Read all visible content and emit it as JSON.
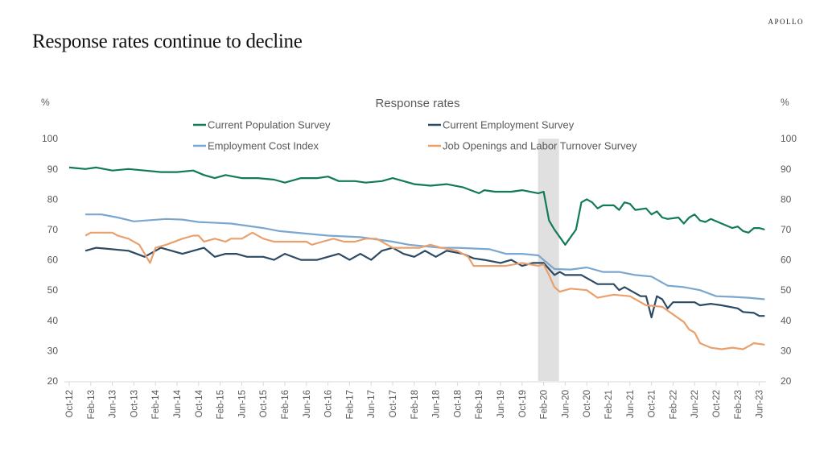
{
  "logo": "APOLLO",
  "slide_title": "Response rates continue to decline",
  "chart_data": {
    "type": "line",
    "title": "Response rates",
    "ylabel_left": "%",
    "ylabel_right": "%",
    "ylim": [
      20,
      100
    ],
    "y_ticks": [
      20,
      30,
      40,
      50,
      60,
      70,
      80,
      90,
      100
    ],
    "x_range": [
      "2012-10",
      "2023-07"
    ],
    "x_tick_labels": [
      "Oct-12",
      "Feb-13",
      "Jun-13",
      "Oct-13",
      "Feb-14",
      "Jun-14",
      "Oct-14",
      "Feb-15",
      "Jun-15",
      "Oct-15",
      "Feb-16",
      "Jun-16",
      "Oct-16",
      "Feb-17",
      "Jun-17",
      "Oct-17",
      "Feb-18",
      "Jun-18",
      "Oct-18",
      "Feb-19",
      "Jun-19",
      "Oct-19",
      "Feb-20",
      "Jun-20",
      "Oct-20",
      "Feb-21",
      "Jun-21",
      "Oct-21",
      "Feb-22",
      "Jun-22",
      "Oct-22",
      "Feb-23",
      "Jun-23"
    ],
    "shaded_period": [
      "2020-02",
      "2020-05"
    ],
    "shade_color": "#e0e0e0",
    "grid": false,
    "legend_placement": "top",
    "series": [
      {
        "name": "Current Population Survey",
        "color": "#13795b",
        "points": [
          [
            "2012-10",
            90.5
          ],
          [
            "2013-01",
            90
          ],
          [
            "2013-03",
            90.5
          ],
          [
            "2013-06",
            89.5
          ],
          [
            "2013-09",
            90
          ],
          [
            "2013-12",
            89.5
          ],
          [
            "2014-03",
            89
          ],
          [
            "2014-06",
            89
          ],
          [
            "2014-09",
            89.5
          ],
          [
            "2014-11",
            88
          ],
          [
            "2015-01",
            87
          ],
          [
            "2015-03",
            88
          ],
          [
            "2015-06",
            87
          ],
          [
            "2015-09",
            87
          ],
          [
            "2015-12",
            86.5
          ],
          [
            "2016-02",
            85.5
          ],
          [
            "2016-05",
            87
          ],
          [
            "2016-08",
            87
          ],
          [
            "2016-10",
            87.5
          ],
          [
            "2016-12",
            86
          ],
          [
            "2017-03",
            86
          ],
          [
            "2017-05",
            85.5
          ],
          [
            "2017-08",
            86
          ],
          [
            "2017-10",
            87
          ],
          [
            "2017-12",
            86
          ],
          [
            "2018-02",
            85
          ],
          [
            "2018-05",
            84.5
          ],
          [
            "2018-08",
            85
          ],
          [
            "2018-11",
            84
          ],
          [
            "2019-02",
            82
          ],
          [
            "2019-03",
            83
          ],
          [
            "2019-05",
            82.5
          ],
          [
            "2019-08",
            82.5
          ],
          [
            "2019-10",
            83
          ],
          [
            "2020-01",
            82
          ],
          [
            "2020-02",
            82.5
          ],
          [
            "2020-03",
            73
          ],
          [
            "2020-04",
            70
          ],
          [
            "2020-06",
            65
          ],
          [
            "2020-08",
            70
          ],
          [
            "2020-09",
            79
          ],
          [
            "2020-10",
            80
          ],
          [
            "2020-11",
            79
          ],
          [
            "2020-12",
            77
          ],
          [
            "2021-01",
            78
          ],
          [
            "2021-03",
            78
          ],
          [
            "2021-04",
            76.5
          ],
          [
            "2021-05",
            79
          ],
          [
            "2021-06",
            78.5
          ],
          [
            "2021-07",
            76.5
          ],
          [
            "2021-09",
            77
          ],
          [
            "2021-10",
            75
          ],
          [
            "2021-11",
            76
          ],
          [
            "2021-12",
            74
          ],
          [
            "2022-01",
            73.5
          ],
          [
            "2022-03",
            74
          ],
          [
            "2022-04",
            72
          ],
          [
            "2022-05",
            74
          ],
          [
            "2022-06",
            75
          ],
          [
            "2022-07",
            73
          ],
          [
            "2022-08",
            72.5
          ],
          [
            "2022-09",
            73.5
          ],
          [
            "2022-11",
            72
          ],
          [
            "2023-01",
            70.5
          ],
          [
            "2023-02",
            71
          ],
          [
            "2023-03",
            69.5
          ],
          [
            "2023-04",
            69
          ],
          [
            "2023-05",
            70.5
          ],
          [
            "2023-06",
            70.5
          ],
          [
            "2023-07",
            70
          ]
        ]
      },
      {
        "name": "Current Employment Survey",
        "color": "#2c4a63",
        "points": [
          [
            "2013-01",
            63
          ],
          [
            "2013-03",
            64
          ],
          [
            "2013-09",
            63
          ],
          [
            "2013-12",
            61
          ],
          [
            "2014-03",
            64
          ],
          [
            "2014-05",
            63
          ],
          [
            "2014-07",
            62
          ],
          [
            "2014-09",
            63
          ],
          [
            "2014-11",
            64
          ],
          [
            "2015-01",
            61
          ],
          [
            "2015-03",
            62
          ],
          [
            "2015-05",
            62
          ],
          [
            "2015-07",
            61
          ],
          [
            "2015-10",
            61
          ],
          [
            "2015-12",
            60
          ],
          [
            "2016-02",
            62
          ],
          [
            "2016-05",
            60
          ],
          [
            "2016-08",
            60
          ],
          [
            "2016-10",
            61
          ],
          [
            "2016-12",
            62
          ],
          [
            "2017-02",
            60
          ],
          [
            "2017-04",
            62
          ],
          [
            "2017-06",
            60
          ],
          [
            "2017-08",
            63
          ],
          [
            "2017-10",
            64
          ],
          [
            "2017-12",
            62
          ],
          [
            "2018-02",
            61
          ],
          [
            "2018-04",
            63
          ],
          [
            "2018-06",
            61
          ],
          [
            "2018-08",
            63
          ],
          [
            "2018-11",
            62
          ],
          [
            "2019-01",
            60.5
          ],
          [
            "2019-03",
            60
          ],
          [
            "2019-06",
            59
          ],
          [
            "2019-08",
            60
          ],
          [
            "2019-10",
            58
          ],
          [
            "2019-12",
            59
          ],
          [
            "2020-02",
            59
          ],
          [
            "2020-04",
            55
          ],
          [
            "2020-05",
            56
          ],
          [
            "2020-06",
            55
          ],
          [
            "2020-09",
            55
          ],
          [
            "2020-12",
            52
          ],
          [
            "2021-03",
            52
          ],
          [
            "2021-04",
            50
          ],
          [
            "2021-05",
            51
          ],
          [
            "2021-08",
            48
          ],
          [
            "2021-09",
            48
          ],
          [
            "2021-10",
            41
          ],
          [
            "2021-11",
            48
          ],
          [
            "2021-12",
            47
          ],
          [
            "2022-01",
            44
          ],
          [
            "2022-02",
            46
          ],
          [
            "2022-06",
            46
          ],
          [
            "2022-07",
            45
          ],
          [
            "2022-09",
            45.5
          ],
          [
            "2022-11",
            45
          ],
          [
            "2023-02",
            44
          ],
          [
            "2023-03",
            42.8
          ],
          [
            "2023-05",
            42.5
          ],
          [
            "2023-06",
            41.5
          ],
          [
            "2023-07",
            41.5
          ]
        ]
      },
      {
        "name": "Employment Cost Index",
        "color": "#7ba7cf",
        "points": [
          [
            "2013-01",
            75
          ],
          [
            "2013-04",
            75
          ],
          [
            "2013-07",
            74
          ],
          [
            "2013-10",
            72.7
          ],
          [
            "2014-04",
            73.5
          ],
          [
            "2014-07",
            73.3
          ],
          [
            "2014-10",
            72.5
          ],
          [
            "2015-04",
            72
          ],
          [
            "2015-10",
            70.5
          ],
          [
            "2016-01",
            69.5
          ],
          [
            "2016-07",
            68.5
          ],
          [
            "2016-10",
            68
          ],
          [
            "2017-04",
            67.5
          ],
          [
            "2017-10",
            66
          ],
          [
            "2018-01",
            65
          ],
          [
            "2018-07",
            64
          ],
          [
            "2018-10",
            64
          ],
          [
            "2019-04",
            63.5
          ],
          [
            "2019-07",
            62
          ],
          [
            "2019-10",
            62
          ],
          [
            "2020-01",
            61.5
          ],
          [
            "2020-04",
            57
          ],
          [
            "2020-07",
            56.8
          ],
          [
            "2020-10",
            57.5
          ],
          [
            "2021-01",
            56
          ],
          [
            "2021-04",
            56
          ],
          [
            "2021-07",
            55
          ],
          [
            "2021-10",
            54.5
          ],
          [
            "2022-01",
            51.5
          ],
          [
            "2022-04",
            51
          ],
          [
            "2022-07",
            50
          ],
          [
            "2022-10",
            48
          ],
          [
            "2023-01",
            47.8
          ],
          [
            "2023-04",
            47.5
          ],
          [
            "2023-07",
            47
          ]
        ]
      },
      {
        "name": "Job Openings and Labor Turnover Survey",
        "color": "#e9a06c",
        "points": [
          [
            "2013-01",
            68
          ],
          [
            "2013-02",
            69
          ],
          [
            "2013-06",
            69
          ],
          [
            "2013-07",
            68
          ],
          [
            "2013-09",
            67
          ],
          [
            "2013-11",
            65
          ],
          [
            "2013-12",
            62
          ],
          [
            "2014-01",
            59
          ],
          [
            "2014-02",
            64
          ],
          [
            "2014-04",
            65
          ],
          [
            "2014-07",
            67
          ],
          [
            "2014-09",
            68
          ],
          [
            "2014-10",
            68
          ],
          [
            "2014-11",
            66
          ],
          [
            "2015-01",
            67
          ],
          [
            "2015-03",
            66
          ],
          [
            "2015-04",
            67
          ],
          [
            "2015-06",
            67
          ],
          [
            "2015-08",
            69
          ],
          [
            "2015-10",
            67
          ],
          [
            "2015-12",
            66
          ],
          [
            "2016-03",
            66
          ],
          [
            "2016-06",
            66
          ],
          [
            "2016-07",
            65
          ],
          [
            "2016-09",
            66
          ],
          [
            "2016-11",
            67
          ],
          [
            "2017-01",
            66
          ],
          [
            "2017-03",
            66
          ],
          [
            "2017-05",
            67
          ],
          [
            "2017-07",
            67
          ],
          [
            "2017-10",
            64
          ],
          [
            "2018-01",
            64
          ],
          [
            "2018-03",
            64
          ],
          [
            "2018-05",
            65
          ],
          [
            "2018-07",
            64
          ],
          [
            "2018-10",
            63
          ],
          [
            "2018-12",
            61
          ],
          [
            "2019-01",
            58
          ],
          [
            "2019-03",
            58
          ],
          [
            "2019-05",
            58
          ],
          [
            "2019-07",
            58
          ],
          [
            "2019-10",
            59
          ],
          [
            "2020-01",
            58
          ],
          [
            "2020-02",
            58.5
          ],
          [
            "2020-03",
            55
          ],
          [
            "2020-04",
            51
          ],
          [
            "2020-05",
            49.5
          ],
          [
            "2020-07",
            50.5
          ],
          [
            "2020-10",
            50
          ],
          [
            "2020-12",
            47.5
          ],
          [
            "2021-03",
            48.5
          ],
          [
            "2021-06",
            48
          ],
          [
            "2021-09",
            45
          ],
          [
            "2021-12",
            44.5
          ],
          [
            "2022-02",
            42
          ],
          [
            "2022-04",
            39.5
          ],
          [
            "2022-05",
            37
          ],
          [
            "2022-06",
            36
          ],
          [
            "2022-07",
            32.5
          ],
          [
            "2022-09",
            31
          ],
          [
            "2022-11",
            30.5
          ],
          [
            "2023-01",
            31
          ],
          [
            "2023-03",
            30.5
          ],
          [
            "2023-04",
            31.5
          ],
          [
            "2023-05",
            32.5
          ],
          [
            "2023-07",
            32
          ]
        ]
      }
    ]
  }
}
